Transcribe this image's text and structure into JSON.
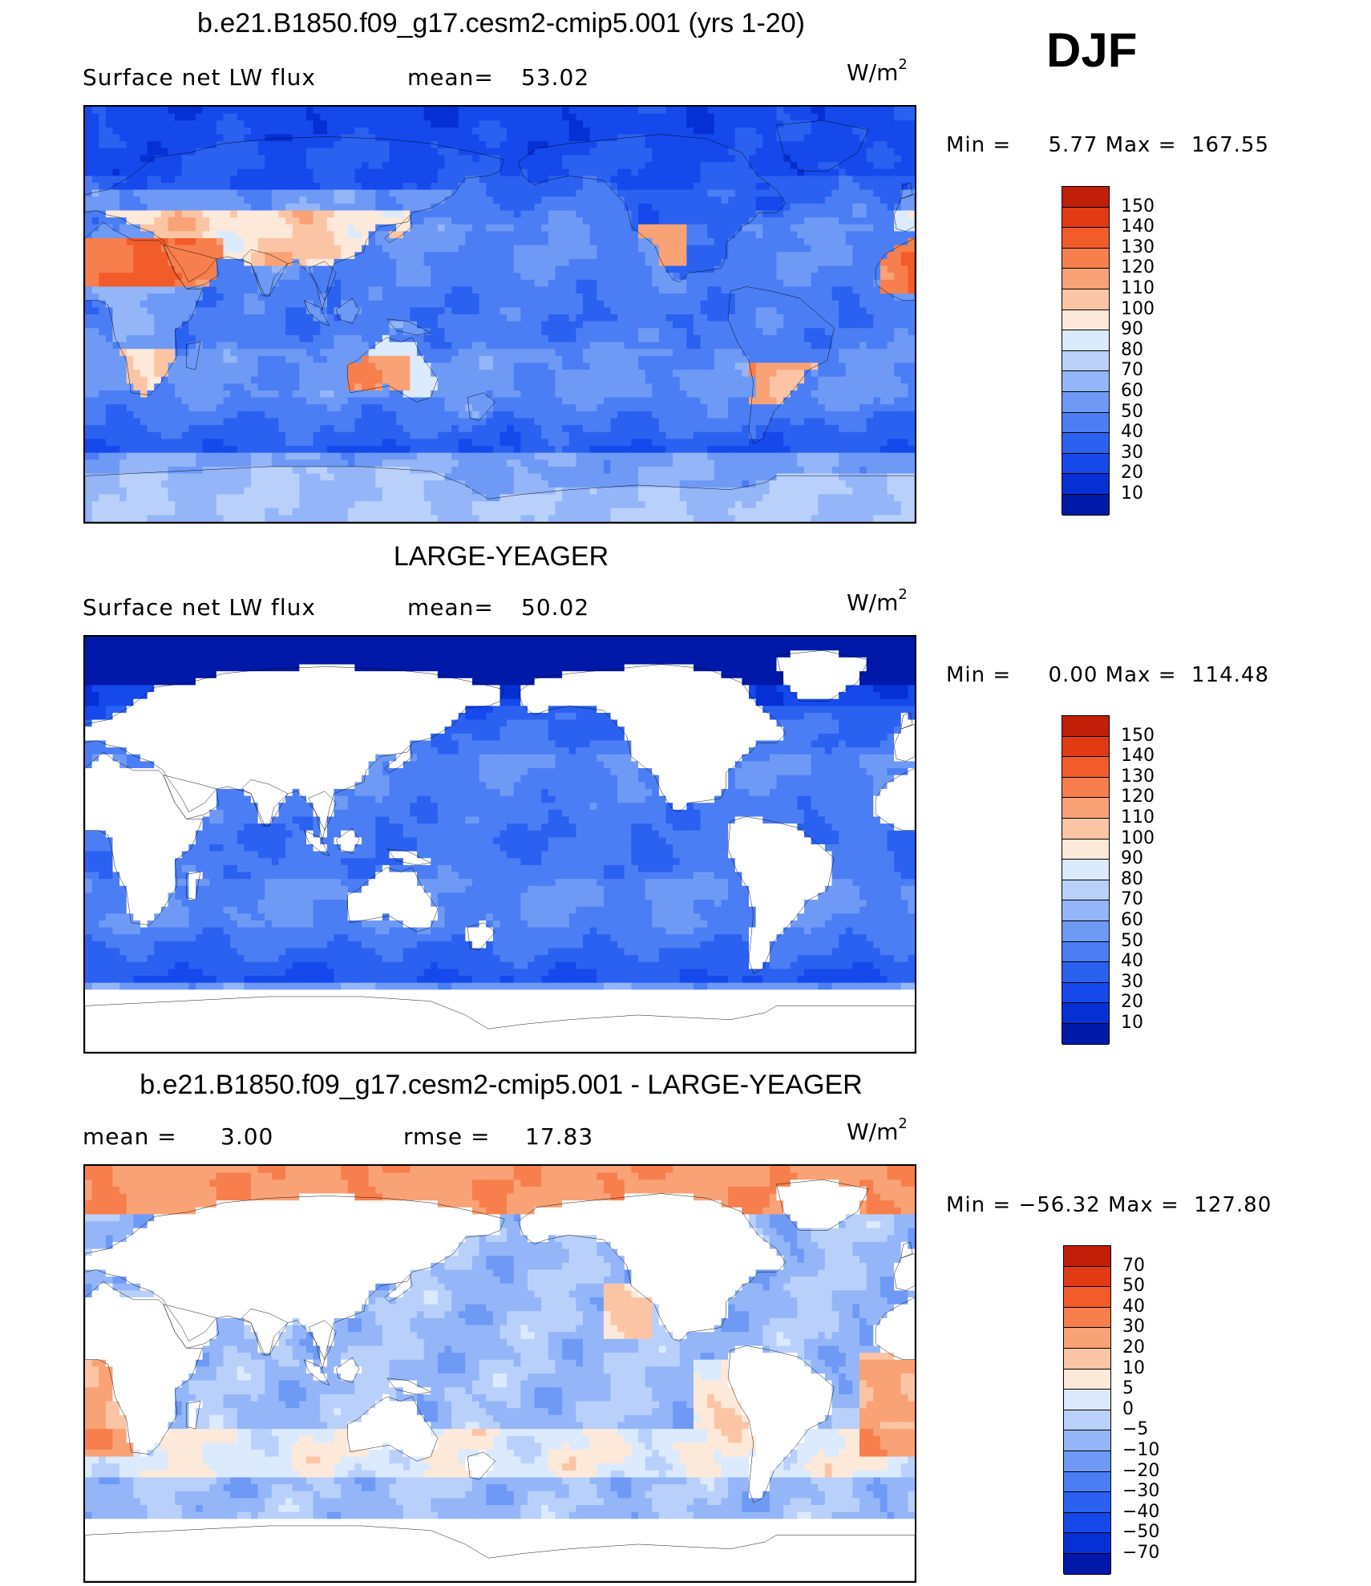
{
  "season": "DJF",
  "units_base": "W/m",
  "units_exp": "2",
  "colors": {
    "abs": [
      "#00096e",
      "#0019a8",
      "#0530d6",
      "#1549ec",
      "#2b61f0",
      "#4b7ef4",
      "#6e9af6",
      "#94b6f8",
      "#b9d1fa",
      "#dceafd",
      "#fde9d9",
      "#fbc5a5",
      "#f9a276",
      "#f77f4d",
      "#f25c2b",
      "#e23b14",
      "#c11f08",
      "#8a0a00"
    ],
    "diff": [
      "#00096e",
      "#0019a8",
      "#0530d6",
      "#1549ec",
      "#2b61f0",
      "#4b7ef4",
      "#6e9af6",
      "#94b6f8",
      "#b9d1fa",
      "#dceafd",
      "#fde9d9",
      "#fbc5a5",
      "#f9a276",
      "#f77f4d",
      "#f25c2b",
      "#e23b14",
      "#c11f08",
      "#8a0a00"
    ],
    "land_blank": "#ffffff"
  },
  "panels": [
    {
      "title": "b.e21.B1850.f09_g17.cesm2-cmip5.001 (yrs 1-20)",
      "left_label": "Surface net LW flux",
      "mid_label": "mean=",
      "mid_value": "53.02",
      "min_label": "Min  =",
      "min_value": "5.77",
      "max_label": "Max  =",
      "max_value": "167.55",
      "colorbar_labels": [
        "150",
        "140",
        "130",
        "120",
        "110",
        "100",
        "90",
        "80",
        "70",
        "60",
        "50",
        "40",
        "30",
        "20",
        "10"
      ],
      "field": "model"
    },
    {
      "title": "LARGE-YEAGER",
      "left_label": "Surface net LW flux",
      "mid_label": "mean=",
      "mid_value": "50.02",
      "min_label": "Min  =",
      "min_value": "0.00",
      "max_label": "Max  =",
      "max_value": "114.48",
      "colorbar_labels": [
        "150",
        "140",
        "130",
        "120",
        "110",
        "100",
        "90",
        "80",
        "70",
        "60",
        "50",
        "40",
        "30",
        "20",
        "10"
      ],
      "field": "obs"
    },
    {
      "title": "b.e21.B1850.f09_g17.cesm2-cmip5.001 - LARGE-YEAGER",
      "left_label": "mean =",
      "left_value": "3.00",
      "mid_label": "rmse =",
      "mid_value": "17.83",
      "min_label": "Min  =",
      "min_value": "−56.32",
      "max_label": "Max  =",
      "max_value": "127.80",
      "colorbar_labels": [
        "70",
        "50",
        "40",
        "30",
        "20",
        "10",
        "5",
        "0",
        "−5",
        "−10",
        "−20",
        "−30",
        "−40",
        "−50",
        "−70"
      ],
      "field": "diff"
    }
  ]
}
